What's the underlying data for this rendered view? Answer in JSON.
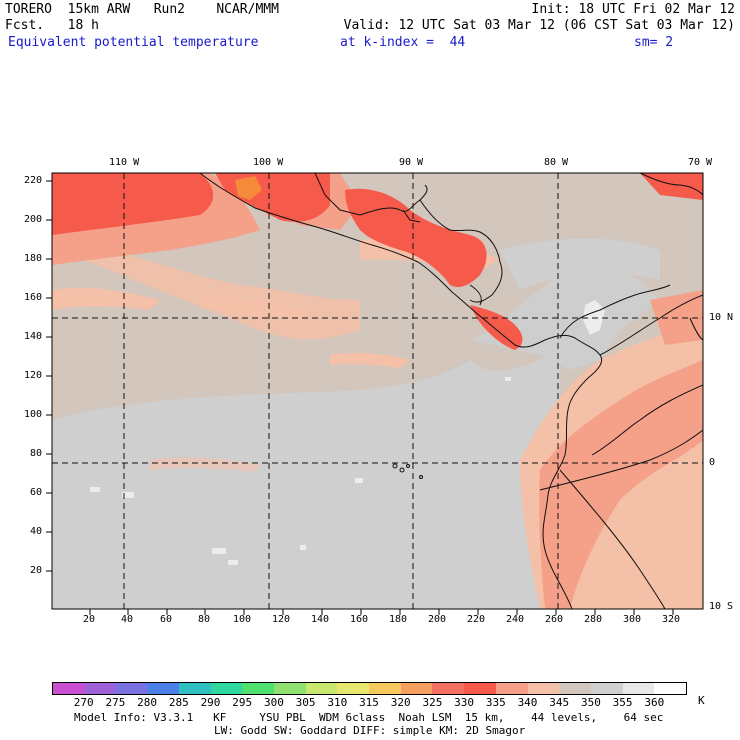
{
  "header": {
    "left_line1": "TORERO  15km ARW   Run2    NCAR/MMM",
    "left_line2": "Fcst.   18 h",
    "right_line1": "Init: 18 UTC Fri 02 Mar 12",
    "right_line2": "Valid: 12 UTC Sat 03 Mar 12 (06 CST Sat 03 Mar 12)",
    "field_title": "Equivalent potential temperature",
    "level": "at k-index =  44",
    "smoothing": "sm= 2"
  },
  "map": {
    "lon_labels": [
      "110 W",
      "100 W",
      "90 W",
      "80 W",
      "70 W"
    ],
    "lat_labels": [
      "10 N",
      "0",
      "10 S"
    ],
    "y_grid_labels": [
      "220",
      "200",
      "180",
      "160",
      "140",
      "120",
      "100",
      "80",
      "60",
      "40",
      "20"
    ],
    "x_grid_labels": [
      "20",
      "40",
      "60",
      "80",
      "100",
      "120",
      "140",
      "160",
      "180",
      "200",
      "220",
      "240",
      "260",
      "280",
      "300",
      "320"
    ],
    "background_color": "#d2c6bd",
    "cool_region_color": "#cfcfcf",
    "warm_light_color": "#f5c0a8",
    "warm_medium_color": "#f5a089",
    "warm_strong_color": "#f55a4a",
    "warm_peak_color": "#f58a3a"
  },
  "colorbar": {
    "labels": [
      "270",
      "275",
      "280",
      "285",
      "290",
      "295",
      "300",
      "305",
      "310",
      "315",
      "320",
      "325",
      "330",
      "335",
      "340",
      "345",
      "350",
      "355",
      "360"
    ],
    "unit": "K",
    "colors": [
      "#c84fd0",
      "#a060d8",
      "#7a70e0",
      "#4a80e8",
      "#30c0c0",
      "#30d8a0",
      "#50e070",
      "#90e070",
      "#c8e870",
      "#e8e870",
      "#f5c860",
      "#f5a060",
      "#f57060",
      "#f55a4a",
      "#f5a089",
      "#f5c0a8",
      "#d2c6bd",
      "#cfcfcf",
      "#e8e8e8",
      "#ffffff"
    ]
  },
  "footer": {
    "line1": "Model Info: V3.3.1   KF     YSU PBL  WDM 6class  Noah LSM  15 km,    44 levels,    64 sec",
    "line2": "LW: Godd SW: Goddard DIFF: simple KM: 2D Smagor"
  }
}
